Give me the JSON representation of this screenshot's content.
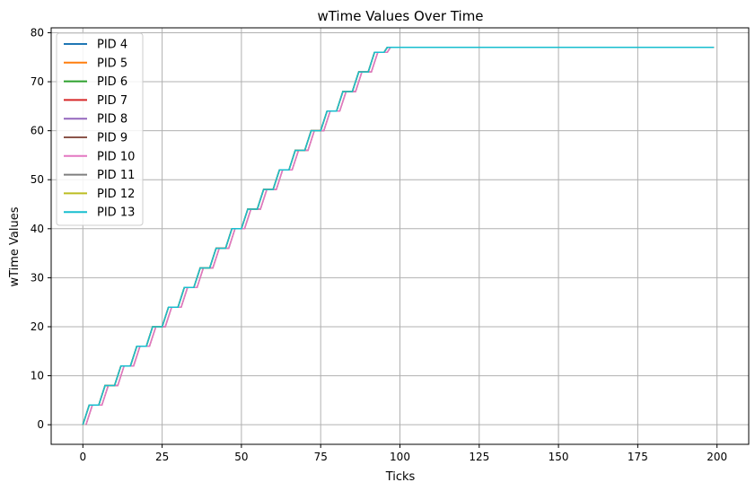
{
  "chart_data": {
    "type": "line",
    "title": "wTime Values Over Time",
    "xlabel": "Ticks",
    "ylabel": "wTime Values",
    "xlim": [
      -10,
      210
    ],
    "ylim": [
      -4,
      81
    ],
    "xticks": [
      0,
      25,
      50,
      75,
      100,
      125,
      150,
      175,
      200
    ],
    "yticks": [
      0,
      10,
      20,
      30,
      40,
      50,
      60,
      70,
      80
    ],
    "grid": true,
    "legend_position": "top-left",
    "series": [
      {
        "name": "PID 4",
        "color": "#1f77b4",
        "start": 0,
        "plateau_start": 96,
        "plateau_value": 77,
        "end": 199
      },
      {
        "name": "PID 5",
        "color": "#ff7f0e",
        "start": 0,
        "plateau_start": 96,
        "plateau_value": 77,
        "end": 199
      },
      {
        "name": "PID 6",
        "color": "#2ca02c",
        "start": 0,
        "plateau_start": 96,
        "plateau_value": 77,
        "end": 199
      },
      {
        "name": "PID 7",
        "color": "#d62728",
        "start": 0,
        "plateau_start": 96,
        "plateau_value": 77,
        "end": 199
      },
      {
        "name": "PID 8",
        "color": "#9467bd",
        "start": 0,
        "plateau_start": 96,
        "plateau_value": 77,
        "end": 199
      },
      {
        "name": "PID 9",
        "color": "#8c564b",
        "start": 1,
        "plateau_start": 97,
        "plateau_value": 77,
        "end": 199
      },
      {
        "name": "PID 10",
        "color": "#e377c2",
        "start": 1,
        "plateau_start": 97,
        "plateau_value": 77,
        "end": 199
      },
      {
        "name": "PID 11",
        "color": "#7f7f7f",
        "start": 0,
        "plateau_start": 96,
        "plateau_value": 77,
        "end": 199
      },
      {
        "name": "PID 12",
        "color": "#bcbd22",
        "start": 0,
        "plateau_start": 96,
        "plateau_value": 77,
        "end": 199
      },
      {
        "name": "PID 13",
        "color": "#17becf",
        "start": 0,
        "plateau_start": 96,
        "plateau_value": 77,
        "end": 199
      }
    ]
  }
}
